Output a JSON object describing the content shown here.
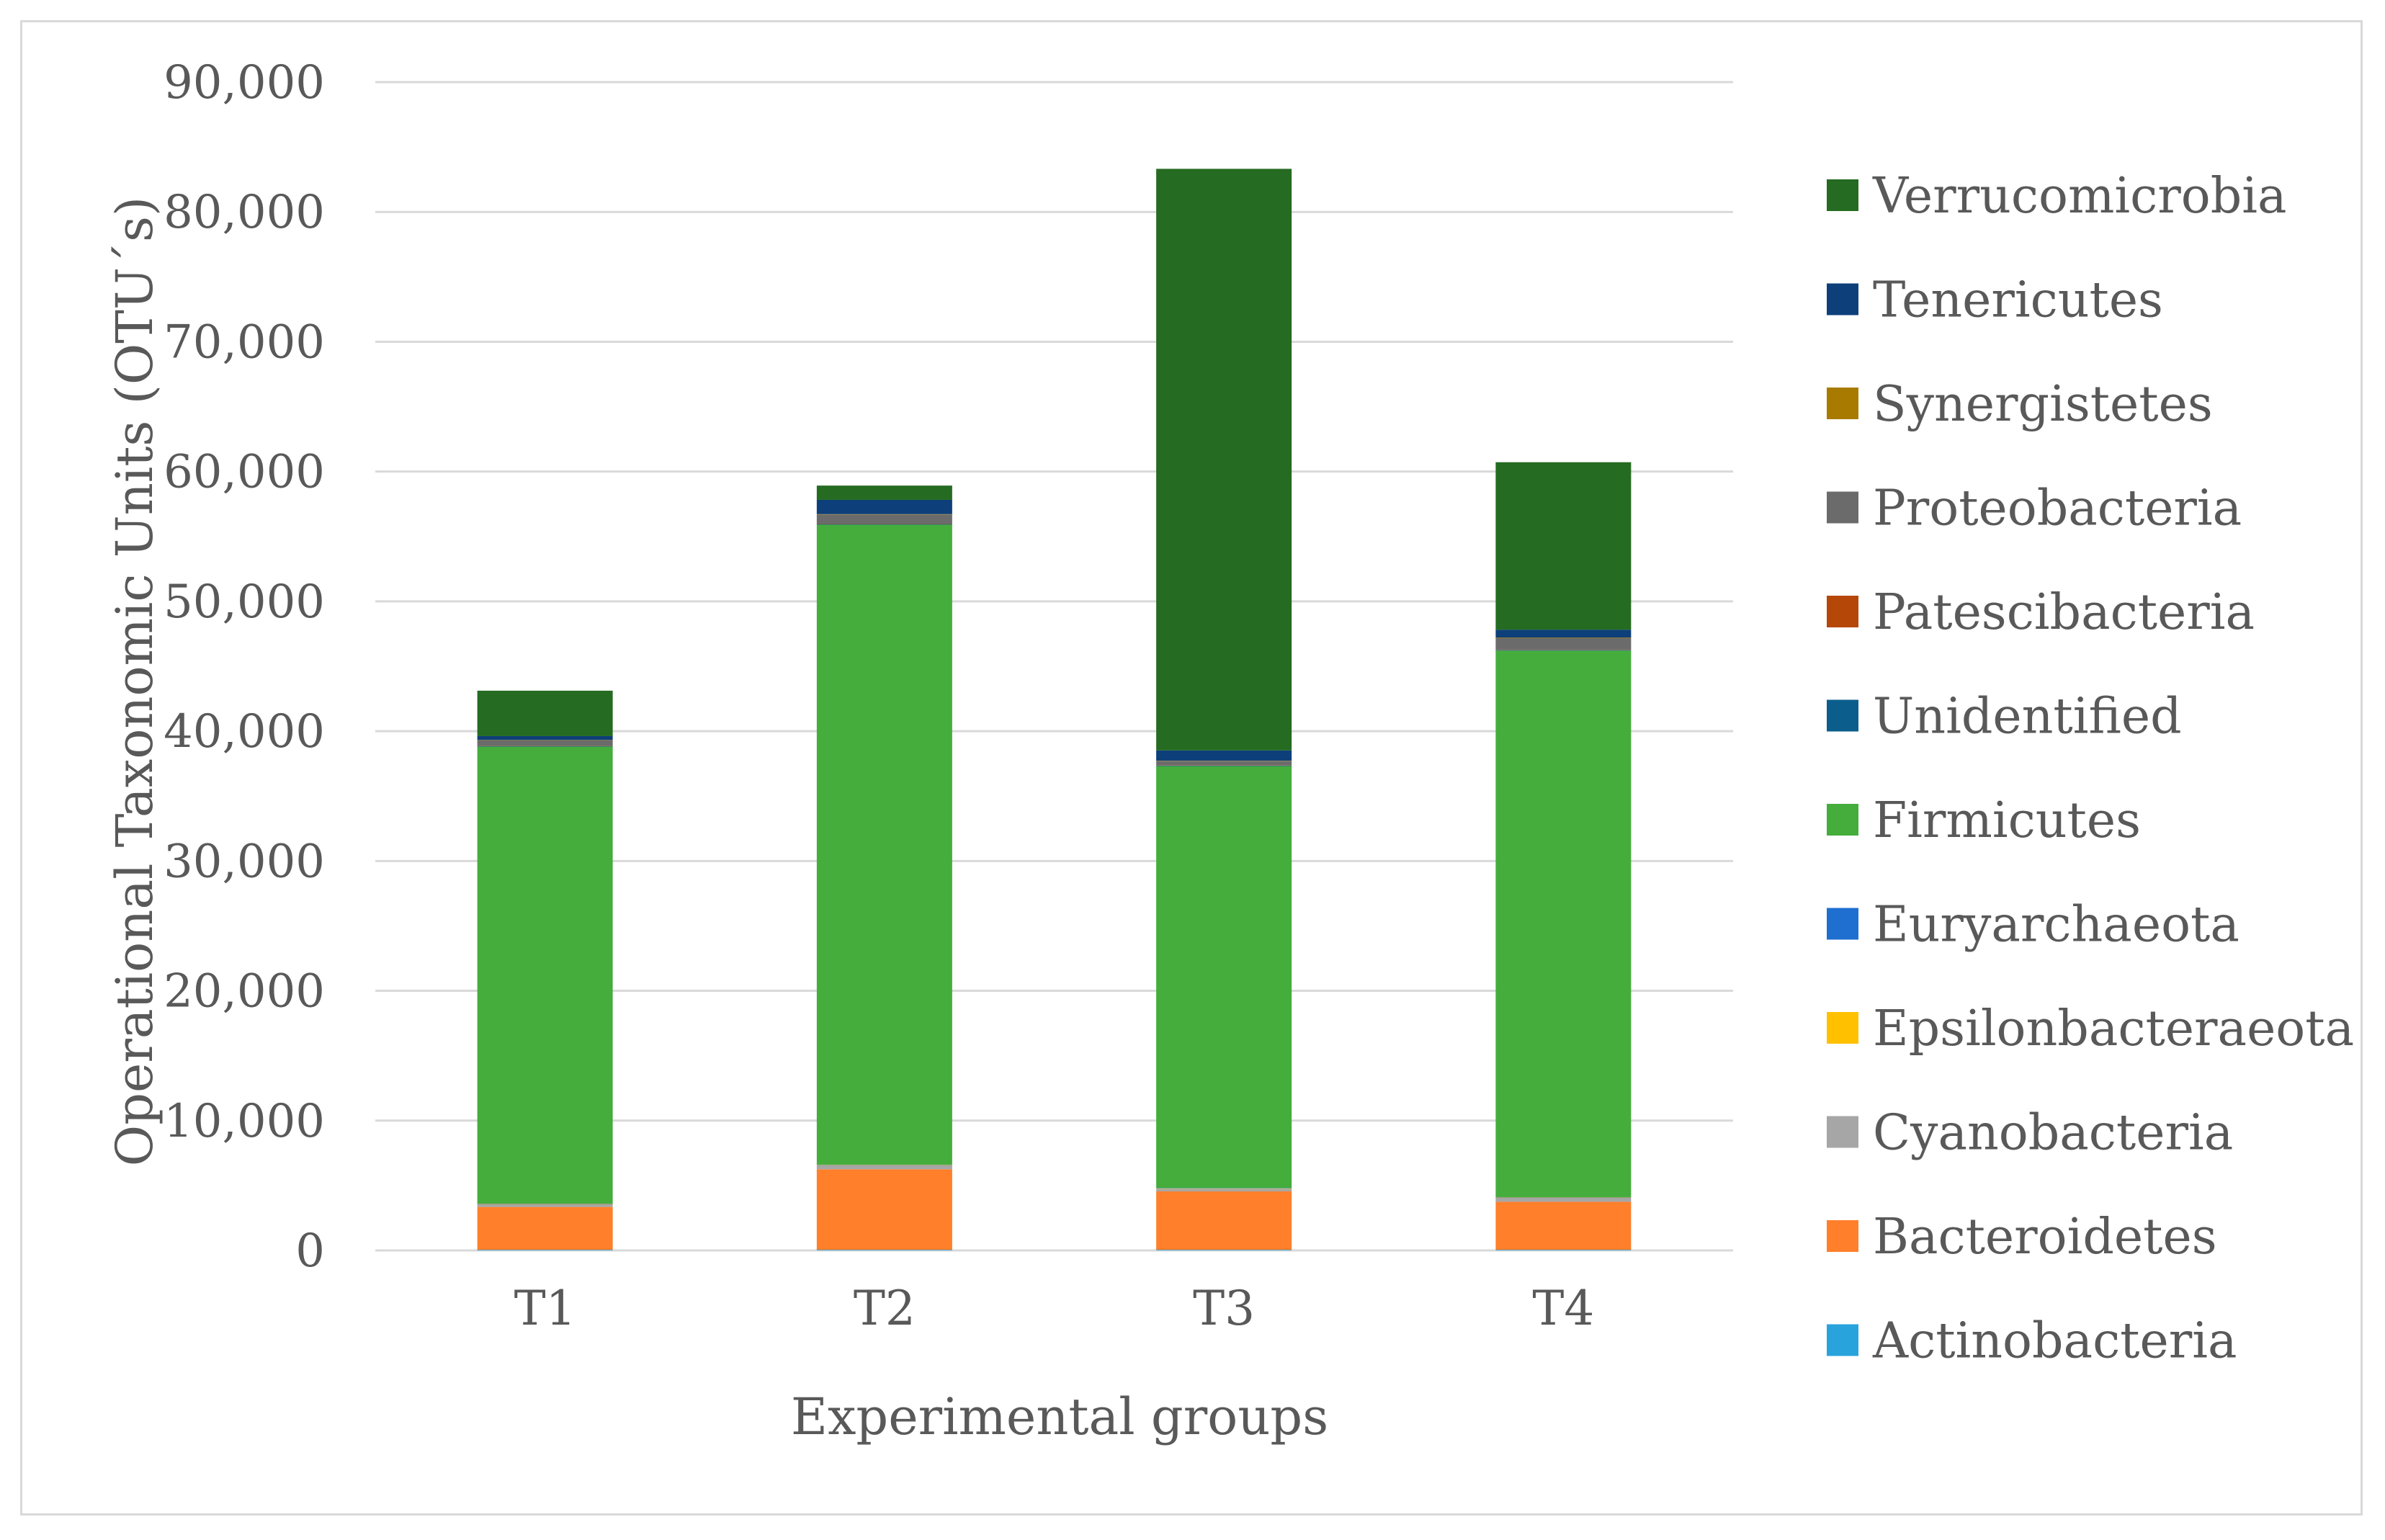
{
  "chart_data": {
    "type": "bar",
    "stacked": true,
    "title": "",
    "xlabel": "Experimental groups",
    "ylabel": "Operational Taxonomic Units  (OTU´s)",
    "ylim": [
      0,
      90000
    ],
    "yticks": [
      0,
      10000,
      20000,
      30000,
      40000,
      50000,
      60000,
      70000,
      80000,
      90000
    ],
    "ytick_labels": [
      "0",
      "10,000",
      "20,000",
      "30,000",
      "40,000",
      "50,000",
      "60,000",
      "70,000",
      "80,000",
      "90,000"
    ],
    "grid": true,
    "legend_position": "right",
    "categories": [
      "T1",
      "T2",
      "T3",
      "T4"
    ],
    "series": [
      {
        "name": "Actinobacteria",
        "color": "#29a3dc",
        "values": [
          50,
          50,
          50,
          50
        ]
      },
      {
        "name": "Bacteroidetes",
        "color": "#ff7f2a",
        "values": [
          3300,
          6200,
          4500,
          3700
        ]
      },
      {
        "name": "Cyanobacteria",
        "color": "#a6a6a6",
        "values": [
          200,
          300,
          200,
          300
        ]
      },
      {
        "name": "Epsilonbacteraeota",
        "color": "#ffc000",
        "values": [
          30,
          30,
          30,
          30
        ]
      },
      {
        "name": "Euryarchaeota",
        "color": "#1f6fd1",
        "values": [
          30,
          30,
          30,
          30
        ]
      },
      {
        "name": "Firmicutes",
        "color": "#44ad3c",
        "values": [
          35200,
          49300,
          32500,
          42100
        ]
      },
      {
        "name": "Unidentified",
        "color": "#0b5e8c",
        "values": [
          50,
          50,
          50,
          50
        ]
      },
      {
        "name": "Patescibacteria",
        "color": "#b54708",
        "values": [
          30,
          30,
          30,
          30
        ]
      },
      {
        "name": "Proteobacteria",
        "color": "#6b6b6b",
        "values": [
          400,
          700,
          300,
          900
        ]
      },
      {
        "name": "Synergistetes",
        "color": "#a87b00",
        "values": [
          30,
          30,
          30,
          30
        ]
      },
      {
        "name": "Tenericutes",
        "color": "#0d3f7a",
        "values": [
          300,
          1100,
          800,
          600
        ]
      },
      {
        "name": "Verrucomicrobia",
        "color": "#256b21",
        "values": [
          3500,
          1100,
          44800,
          12900
        ]
      }
    ]
  },
  "colors": {
    "gridline": "#d9d9d9",
    "axis_text": "#595959"
  }
}
